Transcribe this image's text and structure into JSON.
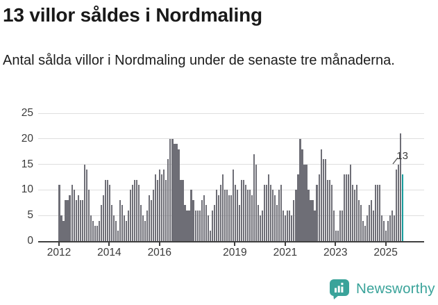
{
  "header": {
    "title": "13 villor såldes i Nordmaling",
    "subtitle": "Antal sålda villor i Nordmaling under de senaste tre månaderna."
  },
  "annotation": {
    "label": "13"
  },
  "logo": {
    "text": "Newsworthy"
  },
  "colors": {
    "bar": "#6e6e76",
    "highlight": "#169c9c",
    "logo_teal": "#3aa39a",
    "gridline": "#dedede",
    "axis": "#3f3f3f",
    "text": "#191919"
  },
  "chart_data": {
    "type": "bar",
    "title": "13 villor såldes i Nordmaling",
    "xlabel": "",
    "ylabel": "",
    "x_start": "2012-01",
    "x_end": "2025-09",
    "x_unit": "month",
    "ylim": [
      0,
      25
    ],
    "y_ticks": [
      0,
      5,
      10,
      15,
      20,
      25
    ],
    "grid": "horizontal",
    "x_ticks": [
      {
        "label": "2012",
        "month_index": 0
      },
      {
        "label": "2014",
        "month_index": 24
      },
      {
        "label": "2016",
        "month_index": 48
      },
      {
        "label": "2019",
        "month_index": 84
      },
      {
        "label": "2021",
        "month_index": 108
      },
      {
        "label": "2023",
        "month_index": 132
      },
      {
        "label": "2025",
        "month_index": 156
      }
    ],
    "highlight_last": true,
    "highlight_value": 13,
    "values": [
      11,
      5,
      4,
      8,
      8,
      9,
      11,
      10,
      8,
      9,
      8,
      8,
      15,
      14,
      10,
      5,
      4,
      3,
      3,
      4,
      7,
      9,
      12,
      12,
      11,
      7,
      5,
      4,
      2,
      8,
      7,
      5,
      4,
      6,
      10,
      11,
      12,
      12,
      11,
      7,
      5,
      4,
      6,
      9,
      8,
      10,
      13,
      12,
      14,
      13,
      14,
      12,
      16,
      20,
      20,
      19,
      19,
      18,
      12,
      12,
      7,
      6,
      6,
      10,
      8,
      6,
      6,
      6,
      8,
      9,
      7,
      5,
      2,
      6,
      7,
      10,
      9,
      11,
      13,
      10,
      10,
      9,
      9,
      14,
      11,
      10,
      7,
      12,
      12,
      11,
      10,
      10,
      9,
      17,
      15,
      7,
      5,
      6,
      11,
      11,
      13,
      11,
      10,
      9,
      7,
      10,
      11,
      6,
      5,
      6,
      6,
      5,
      8,
      10,
      13,
      20,
      18,
      15,
      15,
      10,
      8,
      8,
      6,
      11,
      13,
      18,
      16,
      16,
      12,
      12,
      11,
      6,
      2,
      2,
      6,
      6,
      13,
      13,
      13,
      15,
      11,
      10,
      11,
      8,
      7,
      4,
      3,
      5,
      7,
      8,
      6,
      11,
      11,
      11,
      5,
      4,
      2,
      4,
      5,
      6,
      5,
      14,
      15,
      21,
      13
    ]
  }
}
